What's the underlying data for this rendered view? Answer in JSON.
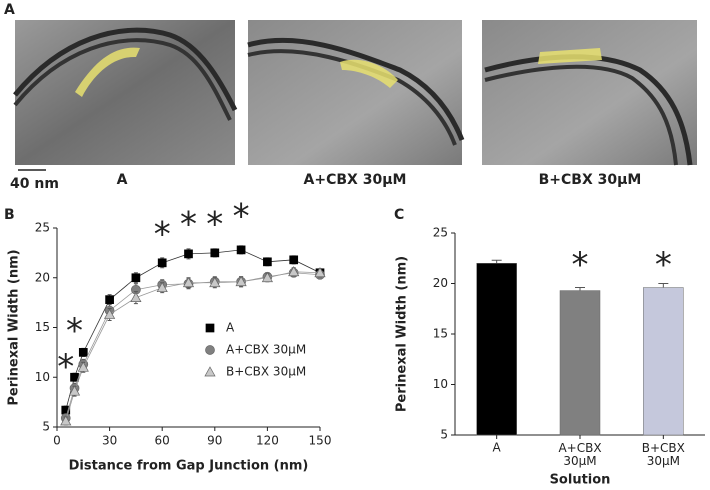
{
  "panel_labels": [
    "A",
    "B",
    "C"
  ],
  "micrographs": {
    "scale_bar": "40 nm",
    "captions": [
      "A",
      "A+CBX 30μM",
      "B+CBX 30μM"
    ]
  },
  "chart_data": [
    {
      "type": "line",
      "xlabel": "Distance from Gap Junction (nm)",
      "ylabel": "Perinexal Width (nm)",
      "x": [
        5,
        10,
        15,
        30,
        45,
        60,
        75,
        90,
        105,
        120,
        135,
        150
      ],
      "xlim": [
        0,
        150
      ],
      "xticks": [
        0,
        30,
        60,
        90,
        120,
        150
      ],
      "ylim": [
        5,
        25
      ],
      "yticks": [
        5,
        10,
        15,
        20,
        25
      ],
      "legend": "center",
      "series": [
        {
          "name": "A",
          "color": "#000000",
          "marker": "square",
          "values": [
            6.7,
            10.0,
            12.5,
            17.8,
            20.0,
            21.5,
            22.4,
            22.5,
            22.8,
            21.6,
            21.8,
            20.5
          ],
          "errors": [
            0.4,
            0.4,
            0.4,
            0.5,
            0.5,
            0.5,
            0.5,
            0.4,
            0.4,
            0.4,
            0.4,
            0.4
          ]
        },
        {
          "name": "A+CBX 30μM",
          "color": "#808080",
          "marker": "circle",
          "values": [
            5.9,
            8.9,
            11.3,
            16.7,
            18.8,
            19.3,
            19.4,
            19.6,
            19.6,
            20.1,
            20.5,
            20.3
          ],
          "errors": [
            0.4,
            0.5,
            0.5,
            0.6,
            0.6,
            0.5,
            0.5,
            0.5,
            0.5,
            0.4,
            0.4,
            0.4
          ]
        },
        {
          "name": "B+CBX 30μM",
          "color": "#c8c8c8",
          "marker": "triangle",
          "values": [
            5.6,
            8.6,
            11.0,
            16.3,
            18.0,
            19.0,
            19.5,
            19.5,
            19.6,
            20.0,
            20.6,
            20.5
          ],
          "errors": [
            0.4,
            0.5,
            0.5,
            0.6,
            0.6,
            0.5,
            0.5,
            0.5,
            0.5,
            0.4,
            0.4,
            0.4
          ]
        }
      ],
      "annotations": [
        {
          "text": "*",
          "x": 5,
          "y": 11.7
        },
        {
          "text": "*",
          "x": 10,
          "y": 15.3
        },
        {
          "text": "*",
          "x": 60,
          "y": 25.0
        },
        {
          "text": "*",
          "x": 75,
          "y": 26.0
        },
        {
          "text": "*",
          "x": 90,
          "y": 26.0
        },
        {
          "text": "*",
          "x": 105,
          "y": 26.8
        }
      ]
    },
    {
      "type": "bar",
      "xlabel": "Solution",
      "ylabel": "Perinexal Width (nm)",
      "categories": [
        "A",
        "A+CBX\n30μM",
        "B+CBX\n30μM"
      ],
      "values": [
        22.0,
        19.3,
        19.6
      ],
      "errors": [
        0.3,
        0.3,
        0.4
      ],
      "colors": [
        "#000000",
        "#808080",
        "#c5c8dc"
      ],
      "ylim": [
        5,
        25
      ],
      "yticks": [
        5,
        10,
        15,
        20,
        25
      ],
      "annotations": [
        {
          "text": "*",
          "category": 1,
          "y": 22.5
        },
        {
          "text": "*",
          "category": 2,
          "y": 22.5
        }
      ]
    }
  ]
}
